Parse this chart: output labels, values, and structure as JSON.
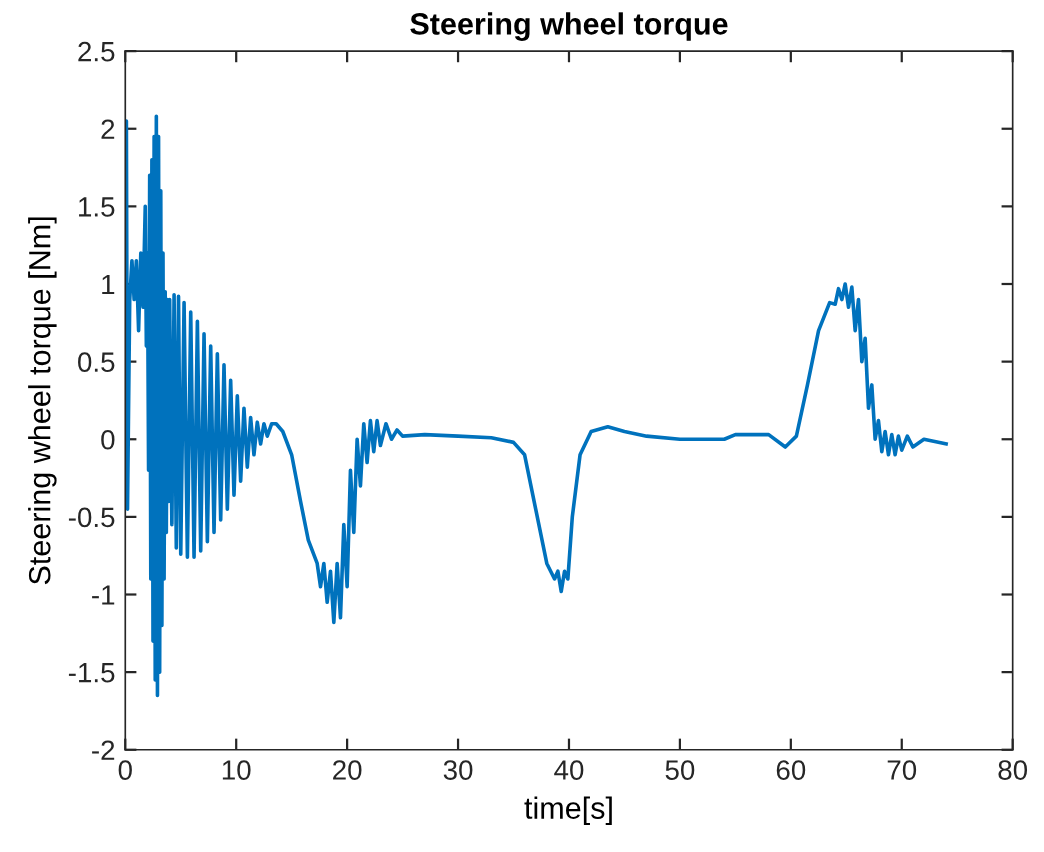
{
  "chart_data": {
    "type": "line",
    "title": "Steering wheel torque",
    "xlabel": "time[s]",
    "ylabel": "Steering wheel torque [Nm]",
    "x": [
      0,
      0.1,
      0.2,
      0.4,
      0.6,
      0.8,
      1.0,
      1.2,
      1.4,
      1.6,
      1.8,
      1.9,
      2.0,
      2.1,
      2.2,
      2.3,
      2.4,
      2.5,
      2.6,
      2.7,
      2.8,
      2.9,
      3.0,
      3.1,
      3.2,
      3.3,
      3.4,
      3.5,
      3.6,
      3.7,
      3.8,
      3.9,
      4.0,
      4.2,
      4.4,
      4.6,
      4.8,
      5.0,
      5.3,
      5.6,
      5.9,
      6.2,
      6.5,
      6.8,
      7.1,
      7.4,
      7.7,
      8.0,
      8.3,
      8.6,
      8.9,
      9.2,
      9.5,
      9.8,
      10.1,
      10.4,
      10.7,
      11.0,
      11.3,
      11.6,
      11.9,
      12.2,
      12.5,
      12.8,
      13.2,
      13.6,
      14.2,
      15.0,
      15.8,
      16.5,
      17.3,
      17.6,
      17.9,
      18.2,
      18.5,
      18.8,
      19.1,
      19.4,
      19.7,
      20.0,
      20.3,
      20.6,
      20.9,
      21.2,
      21.5,
      21.8,
      22.1,
      22.4,
      22.7,
      23.0,
      23.5,
      24,
      24.5,
      25,
      27,
      30,
      33,
      35,
      36,
      37,
      38,
      38.7,
      39.0,
      39.3,
      39.6,
      39.9,
      40.3,
      41,
      42,
      43.5,
      45,
      47,
      50,
      54,
      55,
      58,
      59.5,
      60.5,
      61.5,
      62.5,
      63.5,
      64.0,
      64.3,
      64.6,
      64.9,
      65.2,
      65.5,
      65.8,
      66.1,
      66.4,
      66.7,
      67.0,
      67.3,
      67.6,
      67.9,
      68.2,
      68.5,
      68.8,
      69.1,
      69.4,
      69.7,
      70,
      70.5,
      71,
      72,
      74
    ],
    "series": [
      {
        "color": "#0072bd",
        "values": [
          0,
          2.05,
          -0.45,
          0.9,
          1.15,
          0.9,
          1.15,
          0.7,
          1.2,
          0.85,
          1.5,
          0.6,
          1.2,
          -0.2,
          1.7,
          -0.9,
          1.8,
          -1.3,
          1.95,
          -1.55,
          2.08,
          -1.65,
          1.95,
          -1.5,
          1.6,
          -1.2,
          1.2,
          -0.9,
          0.95,
          -0.6,
          0.9,
          -0.4,
          0.9,
          -0.55,
          0.93,
          -0.7,
          0.92,
          -0.74,
          0.88,
          -0.76,
          0.82,
          -0.76,
          0.76,
          -0.72,
          0.68,
          -0.66,
          0.6,
          -0.6,
          0.55,
          -0.52,
          0.48,
          -0.45,
          0.38,
          -0.36,
          0.28,
          -0.27,
          0.2,
          -0.18,
          0.14,
          -0.1,
          0.11,
          -0.03,
          0.1,
          0.02,
          0.1,
          0.1,
          0.05,
          -0.1,
          -0.4,
          -0.65,
          -0.8,
          -0.95,
          -0.8,
          -1.05,
          -0.85,
          -1.18,
          -0.8,
          -1.15,
          -0.55,
          -0.95,
          -0.2,
          -0.6,
          0.0,
          -0.3,
          0.1,
          -0.15,
          0.12,
          -0.08,
          0.12,
          -0.04,
          0.1,
          0.0,
          0.06,
          0.02,
          0.03,
          0.02,
          0.01,
          -0.02,
          -0.1,
          -0.45,
          -0.8,
          -0.9,
          -0.85,
          -0.98,
          -0.85,
          -0.9,
          -0.5,
          -0.1,
          0.05,
          0.08,
          0.05,
          0.02,
          0,
          0,
          0.03,
          0.03,
          -0.05,
          0.02,
          0.35,
          0.7,
          0.88,
          0.87,
          0.97,
          0.9,
          1.0,
          0.85,
          0.98,
          0.7,
          0.9,
          0.5,
          0.65,
          0.2,
          0.35,
          0.0,
          0.12,
          -0.08,
          0.05,
          -0.1,
          0.03,
          -0.1,
          0.02,
          -0.07,
          0.02,
          -0.05,
          0.0,
          -0.03
        ]
      }
    ],
    "xlim": [
      0,
      80
    ],
    "xticks": [
      0,
      10,
      20,
      30,
      40,
      50,
      60,
      70,
      80
    ],
    "ylim": [
      -2,
      2.5
    ],
    "yticks": [
      -2,
      -1.5,
      -1,
      -0.5,
      0,
      0.5,
      1,
      1.5,
      2,
      2.5
    ],
    "grid": false,
    "legend": false,
    "marker": "none",
    "line_style": "solid"
  }
}
